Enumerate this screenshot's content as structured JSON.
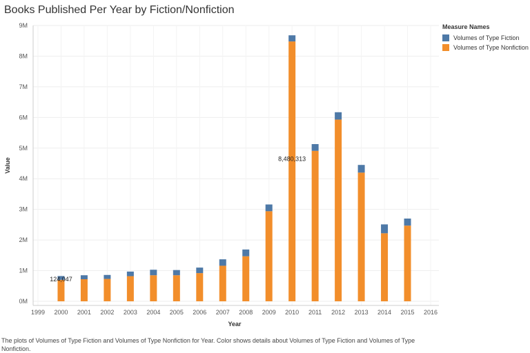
{
  "title": "Books Published Per Year by Fiction/Nonfiction",
  "legend": {
    "title": "Measure Names",
    "items": [
      {
        "label": "Volumes of Type Fiction",
        "color": "#4e79a7"
      },
      {
        "label": "Volumes of Type Nonfiction",
        "color": "#f28e2b"
      }
    ]
  },
  "caption": "The plots of Volumes of Type Fiction and Volumes of Type Nonfiction for Year.  Color shows details about Volumes of Type Fiction and Volumes of Type Nonfiction.",
  "chart_data": {
    "type": "bar",
    "stacked": true,
    "xlabel": "Year",
    "ylabel": "Value",
    "x_ticks": [
      "1999",
      "2000",
      "2001",
      "2002",
      "2003",
      "2004",
      "2005",
      "2006",
      "2007",
      "2008",
      "2009",
      "2010",
      "2011",
      "2012",
      "2013",
      "2014",
      "2015",
      "2016"
    ],
    "y_ticks": [
      "0M",
      "1M",
      "2M",
      "3M",
      "4M",
      "5M",
      "6M",
      "7M",
      "8M",
      "9M"
    ],
    "ylim": [
      0,
      9000000
    ],
    "xlim": [
      1999,
      2016
    ],
    "categories": [
      2000,
      2001,
      2002,
      2003,
      2004,
      2005,
      2006,
      2007,
      2008,
      2009,
      2010,
      2011,
      2012,
      2013,
      2014,
      2015
    ],
    "series": [
      {
        "name": "Volumes of Type Nonfiction",
        "values": [
          700000,
          720000,
          730000,
          820000,
          850000,
          850000,
          920000,
          1160000,
          1470000,
          2940000,
          8480313,
          4910000,
          5930000,
          4200000,
          2220000,
          2470000
        ]
      },
      {
        "name": "Volumes of Type Fiction",
        "values": [
          124047,
          130000,
          130000,
          150000,
          180000,
          170000,
          180000,
          210000,
          220000,
          220000,
          200000,
          220000,
          240000,
          250000,
          290000,
          230000
        ]
      }
    ],
    "data_labels": [
      {
        "year": 2000,
        "text": "124,047"
      },
      {
        "year": 2010,
        "text": "8,480,313"
      }
    ],
    "grid": true
  }
}
